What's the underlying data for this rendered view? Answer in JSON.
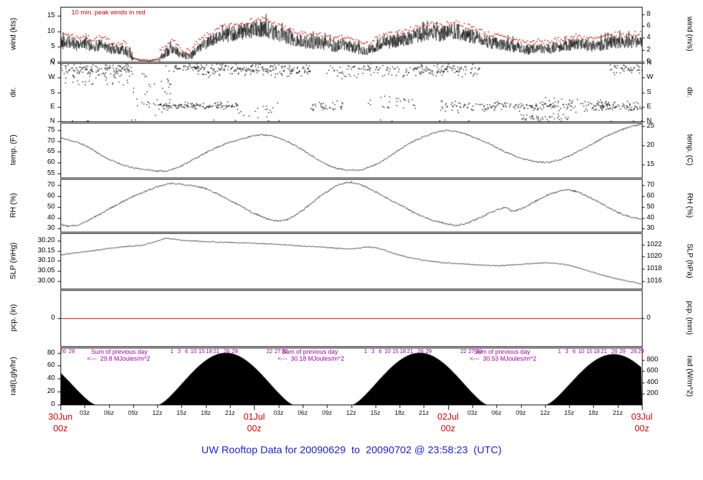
{
  "title": "UW Rooftop Data for 20090629  to  20090702 @ 23:58:23  (UTC)",
  "note_top": "10 min. peak winds in red",
  "colors": {
    "trace": "#000000",
    "peak_red": "#cc0000",
    "date_red": "#cc0000",
    "title_blue": "#2222cc",
    "annotation_purple": "#a000a0",
    "pcp_line_red": "#cc0000"
  },
  "x_axis": {
    "hours_total": 72,
    "minor_labels": [
      "03z",
      "06z",
      "09z",
      "12z",
      "15z",
      "18z",
      "21z"
    ],
    "date_labels": [
      {
        "hour": 0,
        "line1": "30Jun",
        "line2": "00z"
      },
      {
        "hour": 24,
        "line1": "01Jul",
        "line2": "00z"
      },
      {
        "hour": 48,
        "line1": "02Jul",
        "line2": "00z"
      },
      {
        "hour": 72,
        "line1": "03Jul",
        "line2": "00z"
      }
    ]
  },
  "panels": [
    {
      "id": "wind",
      "left_label": "wind (kts)",
      "right_label": "wind (m/s)",
      "left_ticks": [
        "0",
        "5",
        "10",
        "15"
      ],
      "right_ticks": [
        "0",
        "2",
        "4",
        "6",
        "8"
      ],
      "ymin": 0,
      "ymax": 18
    },
    {
      "id": "dir",
      "left_label": "dir.",
      "right_label": "dir.",
      "left_ticks": [
        "N",
        "W",
        "S",
        "E",
        "N"
      ],
      "right_ticks": [
        "N",
        "W",
        "S",
        "E",
        "N"
      ],
      "ymin": 0,
      "ymax": 360
    },
    {
      "id": "temp",
      "left_label": "temp. (F)",
      "right_label": "temp. (C)",
      "left_ticks": [
        "55",
        "60",
        "65",
        "70",
        "75"
      ],
      "right_ticks": [
        "15",
        "20",
        "25"
      ],
      "ymin": 53,
      "ymax": 78.5
    },
    {
      "id": "rh",
      "left_label": "RH (%)",
      "right_label": "RH (%)",
      "left_ticks": [
        "30",
        "40",
        "50",
        "60",
        "70"
      ],
      "right_ticks": [
        "30",
        "40",
        "50",
        "60",
        "70"
      ],
      "ymin": 27,
      "ymax": 76
    },
    {
      "id": "slp",
      "left_label": "SLP (inHg)",
      "right_label": "SLP (hPa)",
      "left_ticks": [
        "30.00",
        "30.05",
        "30.10",
        "30.15",
        "30.20"
      ],
      "right_ticks": [
        "1016",
        "1018",
        "1020",
        "1022"
      ],
      "ymin": 29.965,
      "ymax": 30.235
    },
    {
      "id": "pcp",
      "left_label": "pcp. (in)",
      "right_label": "pcp. (mm)",
      "left_ticks": [
        "0"
      ],
      "right_ticks": [
        "0"
      ],
      "ymin": -1,
      "ymax": 1
    },
    {
      "id": "rad",
      "left_label": "rad(Lgly/hr)",
      "right_label": "rad (W/m^2)",
      "left_ticks": [
        "0",
        "20",
        "40",
        "60",
        "80"
      ],
      "right_ticks": [
        "200",
        "400",
        "600",
        "800"
      ],
      "ymin": 0,
      "ymax": 88
    }
  ],
  "chart_data": {
    "type": "line",
    "subtype": "multi-panel-meteogram",
    "x_start_label": "30Jun 00z",
    "x_end_label": "03Jul 00z",
    "x_range_hours": [
      0,
      72
    ],
    "series": {
      "wind_kts_hourly": [
        6,
        6.5,
        5.5,
        6,
        5,
        5.5,
        4.5,
        3.5,
        4,
        1,
        0.3,
        0.2,
        0.5,
        3,
        4.5,
        2,
        1.5,
        4,
        6,
        7,
        8.5,
        9,
        9.5,
        10,
        10.5,
        11,
        10,
        9,
        8,
        7,
        6.5,
        6,
        6.5,
        5.5,
        5,
        5.5,
        5,
        4,
        3.5,
        5,
        6,
        6.5,
        7,
        7.5,
        8.5,
        9,
        9.5,
        9,
        9.5,
        10,
        9,
        8.5,
        7.5,
        6.5,
        6,
        5.5,
        5,
        4.5,
        4,
        4.5,
        4,
        4.5,
        5,
        5.5,
        6,
        5.5,
        5,
        5.5,
        6,
        6.5,
        6,
        6.5,
        7
      ],
      "temp_f_hourly": [
        71.5,
        70.5,
        69.5,
        68,
        66,
        63.5,
        61.5,
        60,
        58.5,
        57.5,
        57,
        56.5,
        56,
        56,
        57,
        58.5,
        60.5,
        62.5,
        64.5,
        66.5,
        68,
        69.5,
        70.5,
        71.5,
        72.5,
        73,
        72.5,
        71.5,
        70,
        68,
        66,
        63.5,
        61,
        59,
        57.5,
        56.8,
        56.5,
        56.5,
        57.5,
        59,
        61,
        63.5,
        66,
        68.5,
        70.5,
        72,
        73.5,
        74.5,
        75,
        74.5,
        73.5,
        72,
        70.5,
        69,
        67,
        65,
        63.5,
        62,
        61,
        60.3,
        60,
        60.5,
        61.5,
        63,
        65,
        67,
        69,
        71,
        73,
        74.5,
        76,
        77,
        77.8
      ],
      "rh_pct_hourly": [
        34,
        32,
        33,
        36,
        40,
        44,
        48,
        52,
        56,
        60,
        63,
        66,
        69,
        71,
        72,
        71,
        70,
        69,
        67,
        64,
        60,
        56,
        52,
        48,
        44,
        41,
        38,
        37,
        38,
        42,
        47,
        53,
        59,
        64,
        69,
        72,
        73,
        71,
        68,
        64,
        60,
        56,
        52,
        48,
        44,
        41,
        38,
        36,
        34,
        33,
        34,
        37,
        40,
        44,
        47,
        50,
        46,
        48,
        52,
        56,
        60,
        63,
        65,
        66,
        64,
        61,
        57,
        53,
        49,
        45,
        42,
        40,
        39
      ],
      "slp_inhg_hourly": [
        30.13,
        30.135,
        30.14,
        30.145,
        30.15,
        30.155,
        30.16,
        30.165,
        30.17,
        30.172,
        30.175,
        30.185,
        30.196,
        30.21,
        30.206,
        30.2,
        30.198,
        30.196,
        30.194,
        30.192,
        30.19,
        30.19,
        30.188,
        30.188,
        30.186,
        30.184,
        30.182,
        30.18,
        30.178,
        30.175,
        30.172,
        30.17,
        30.168,
        30.165,
        30.162,
        30.16,
        30.158,
        30.162,
        30.168,
        30.165,
        30.155,
        30.14,
        30.128,
        30.118,
        30.11,
        30.103,
        30.098,
        30.093,
        30.09,
        30.087,
        30.085,
        30.082,
        30.08,
        30.078,
        30.076,
        30.078,
        30.08,
        30.083,
        30.086,
        30.089,
        30.091,
        30.089,
        30.085,
        30.078,
        30.068,
        30.056,
        30.044,
        30.032,
        30.022,
        30.012,
        30.004,
        29.996,
        29.988
      ],
      "pcp_in_constant": 0,
      "wind_dir_segments": [
        {
          "h0": 0,
          "h1": 9,
          "c": 320,
          "s": 35,
          "p": 0.9
        },
        {
          "h0": 0,
          "h1": 9,
          "c": 250,
          "s": 50,
          "p": 0.25
        },
        {
          "h0": 9,
          "h1": 14,
          "c": 180,
          "s": 160,
          "p": 0.5
        },
        {
          "h0": 12,
          "h1": 22,
          "c": 95,
          "s": 18,
          "p": 0.8
        },
        {
          "h0": 14,
          "h1": 17,
          "c": 330,
          "s": 25,
          "p": 0.7
        },
        {
          "h0": 17,
          "h1": 31,
          "c": 320,
          "s": 38,
          "p": 0.85
        },
        {
          "h0": 22,
          "h1": 27,
          "c": 60,
          "s": 40,
          "p": 0.2
        },
        {
          "h0": 31,
          "h1": 35,
          "c": 95,
          "s": 28,
          "p": 0.6
        },
        {
          "h0": 33,
          "h1": 44,
          "c": 310,
          "s": 48,
          "p": 0.5
        },
        {
          "h0": 38,
          "h1": 44,
          "c": 120,
          "s": 55,
          "p": 0.3
        },
        {
          "h0": 44,
          "h1": 52,
          "c": 320,
          "s": 38,
          "p": 0.8
        },
        {
          "h0": 47,
          "h1": 53,
          "c": 90,
          "s": 30,
          "p": 0.4
        },
        {
          "h0": 53,
          "h1": 60,
          "c": 95,
          "s": 25,
          "p": 0.75
        },
        {
          "h0": 57,
          "h1": 63,
          "c": 20,
          "s": 25,
          "p": 0.4
        },
        {
          "h0": 60,
          "h1": 68,
          "c": 100,
          "s": 35,
          "p": 0.7
        },
        {
          "h0": 66,
          "h1": 72,
          "c": 90,
          "s": 25,
          "p": 0.8
        },
        {
          "h0": 68,
          "h1": 72,
          "c": 330,
          "s": 35,
          "p": 0.5
        }
      ],
      "rad_lyhr": {
        "halfwidth": 8.3,
        "exp": 1.35,
        "humps": [
          {
            "c": -4,
            "peak": 76
          },
          {
            "c": 20.5,
            "peak": 80
          },
          {
            "c": 44.5,
            "peak": 80
          },
          {
            "c": 68.5,
            "peak": 78
          }
        ]
      },
      "rad_daily_sums_mj": [
        29.8,
        30.18,
        30.53
      ]
    },
    "rad_sum_annotations": [
      {
        "hour": 3.8,
        "line1": "Sum of previous day",
        "line2": "<---  29.8 MJoules/m^2"
      },
      {
        "hour": 27.4,
        "line1": "Sum of previous day",
        "line2": "<---  30.18 MJoules/m^2"
      },
      {
        "hour": 51.2,
        "line1": "Sum of previous day",
        "line2": "<---  30.53 MJoules/m^2"
      }
    ],
    "rad_top_numbers": [
      {
        "h": 0.3,
        "t": "26"
      },
      {
        "h": 1.4,
        "t": "29"
      },
      {
        "h": 13.8,
        "t": "1"
      },
      {
        "h": 14.7,
        "t": "3"
      },
      {
        "h": 15.6,
        "t": "6"
      },
      {
        "h": 16.5,
        "t": "10"
      },
      {
        "h": 17.5,
        "t": "15"
      },
      {
        "h": 18.4,
        "t": "18"
      },
      {
        "h": 19.3,
        "t": "21"
      },
      {
        "h": 20.6,
        "t": "26"
      },
      {
        "h": 21.6,
        "t": "29"
      },
      {
        "h": 25.9,
        "t": "22"
      },
      {
        "h": 26.9,
        "t": "27"
      },
      {
        "h": 27.8,
        "t": "30"
      },
      {
        "h": 37.8,
        "t": "1"
      },
      {
        "h": 38.7,
        "t": "3"
      },
      {
        "h": 39.6,
        "t": "6"
      },
      {
        "h": 40.5,
        "t": "10"
      },
      {
        "h": 41.5,
        "t": "15"
      },
      {
        "h": 42.4,
        "t": "18"
      },
      {
        "h": 43.3,
        "t": "21"
      },
      {
        "h": 44.6,
        "t": "26"
      },
      {
        "h": 45.6,
        "t": "29"
      },
      {
        "h": 49.9,
        "t": "22"
      },
      {
        "h": 50.9,
        "t": "27"
      },
      {
        "h": 51.8,
        "t": "30"
      },
      {
        "h": 61.8,
        "t": "1"
      },
      {
        "h": 62.7,
        "t": "3"
      },
      {
        "h": 63.6,
        "t": "6"
      },
      {
        "h": 64.5,
        "t": "10"
      },
      {
        "h": 65.5,
        "t": "15"
      },
      {
        "h": 66.4,
        "t": "18"
      },
      {
        "h": 67.3,
        "t": "21"
      },
      {
        "h": 68.6,
        "t": "26"
      },
      {
        "h": 69.6,
        "t": "29"
      },
      {
        "h": 71.0,
        "t": "26"
      },
      {
        "h": 71.9,
        "t": "29"
      }
    ]
  }
}
